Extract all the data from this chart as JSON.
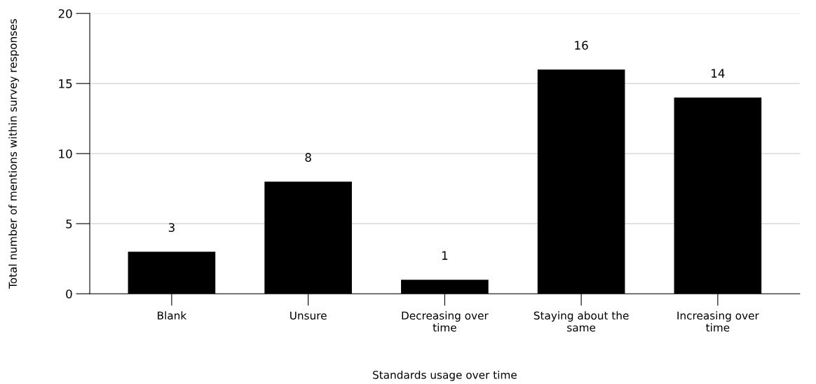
{
  "chart_data": {
    "type": "bar",
    "xlabel": "Standards usage over time",
    "ylabel": "Total number of mentions within survey responses",
    "categories": [
      "Blank",
      "Unsure",
      "Decreasing over\ntime",
      "Staying about the\nsame",
      "Increasing over\ntime"
    ],
    "values": [
      3,
      8,
      1,
      16,
      14
    ],
    "color": "#000000",
    "ylim": [
      0,
      20
    ],
    "yticks": [
      0,
      5,
      10,
      15,
      20
    ],
    "grid": "y",
    "data_labels": true
  }
}
